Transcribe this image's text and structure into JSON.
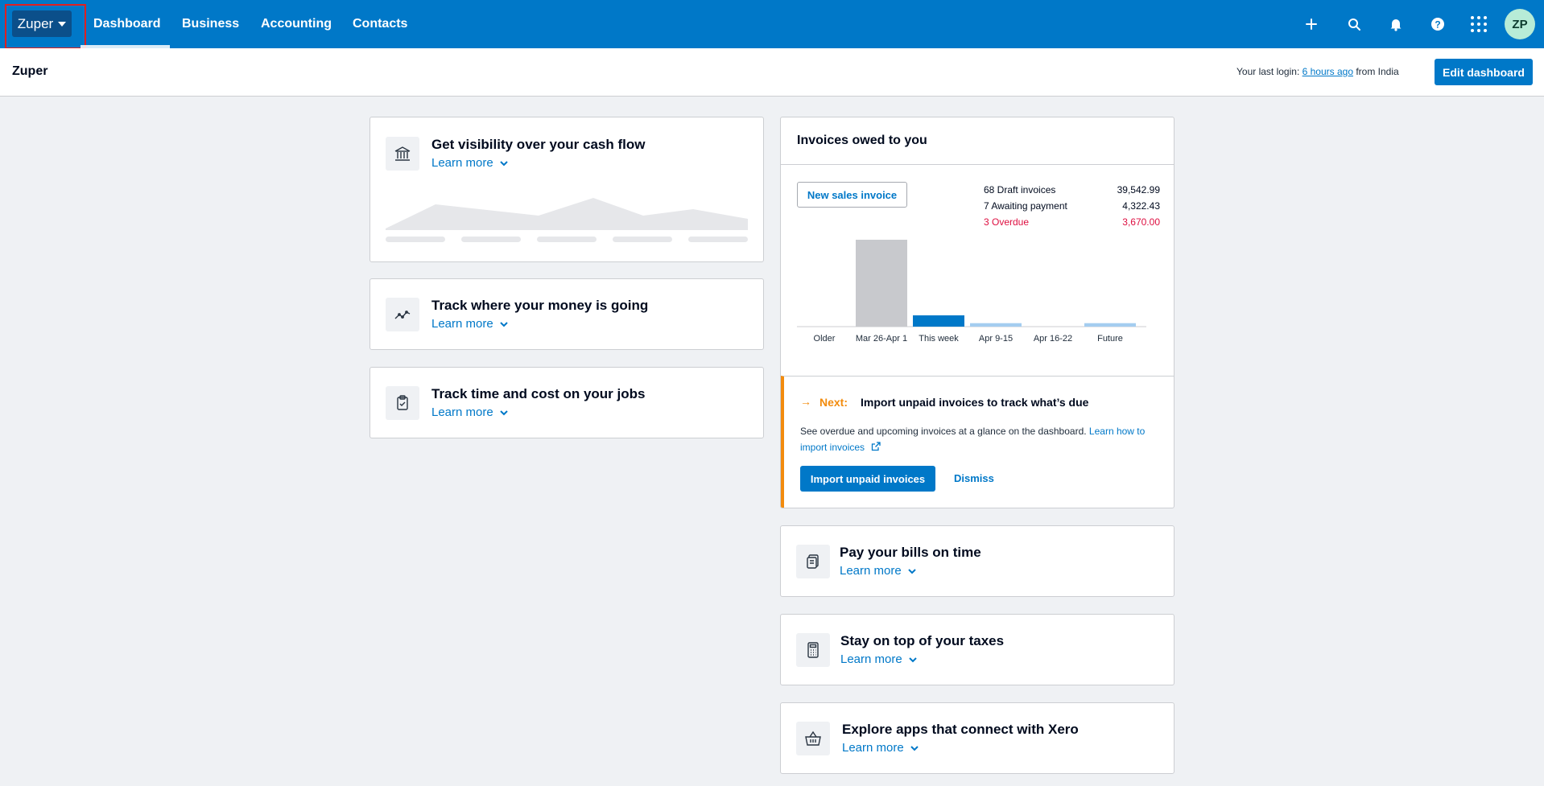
{
  "topbar": {
    "org_name": "Zuper",
    "nav": [
      "Dashboard",
      "Business",
      "Accounting",
      "Contacts"
    ],
    "active_nav": "Dashboard",
    "icons": [
      "plus-icon",
      "search-icon",
      "bell-icon",
      "help-icon",
      "apps-grid-icon"
    ],
    "avatar_initials": "ZP"
  },
  "subheader": {
    "org_title": "Zuper",
    "last_login_prefix": "Your last login: ",
    "last_login_link": "6 hours ago",
    "last_login_suffix": " from India",
    "edit_dashboard": "Edit dashboard"
  },
  "left_cards": [
    {
      "title": "Get visibility over your cash flow",
      "learn_more": "Learn more",
      "icon": "bank-icon"
    },
    {
      "title": "Track where your money is going",
      "learn_more": "Learn more",
      "icon": "trend-line-icon"
    },
    {
      "title": "Track time and cost on your jobs",
      "learn_more": "Learn more",
      "icon": "clipboard-check-icon"
    }
  ],
  "invoices": {
    "title": "Invoices owed to you",
    "new_invoice": "New sales invoice",
    "stats": [
      {
        "label": "68 Draft invoices",
        "value": "39,542.99",
        "status": "normal"
      },
      {
        "label": "7 Awaiting payment",
        "value": "4,322.43",
        "status": "normal"
      },
      {
        "label": "3 Overdue",
        "value": "3,670.00",
        "status": "overdue"
      }
    ],
    "colors": {
      "grey": "#c8c9cd",
      "blue": "#0078c8",
      "light_blue": "#a4cdf0",
      "overdue": "#de0e40",
      "accent": "#f28b0d"
    },
    "chart_data": {
      "type": "bar",
      "categories": [
        "Older",
        "Mar 26-Apr 1",
        "This week",
        "Apr 9-15",
        "Apr 16-22",
        "Future"
      ],
      "values": [
        0,
        100,
        13,
        4,
        0,
        4
      ],
      "bar_colors": [
        "grey",
        "grey",
        "blue",
        "light_blue",
        "light_blue",
        "light_blue"
      ],
      "ylim": [
        0,
        100
      ],
      "grid": false,
      "title": "",
      "xlabel": "",
      "ylabel": ""
    },
    "next": {
      "arrow": "→",
      "label": "Next:",
      "title": "Import unpaid invoices to track what’s due",
      "desc": "See overdue and upcoming invoices at a glance on the dashboard. ",
      "desc_link": "Learn how to import invoices",
      "import_button": "Import unpaid invoices",
      "dismiss": "Dismiss"
    }
  },
  "right_cards": [
    {
      "title": "Pay your bills on time",
      "learn_more": "Learn more",
      "icon": "bill-icon"
    },
    {
      "title": "Stay on top of your taxes",
      "learn_more": "Learn more",
      "icon": "calculator-icon"
    },
    {
      "title": "Explore apps that connect with Xero",
      "learn_more": "Learn more",
      "icon": "basket-icon"
    }
  ]
}
